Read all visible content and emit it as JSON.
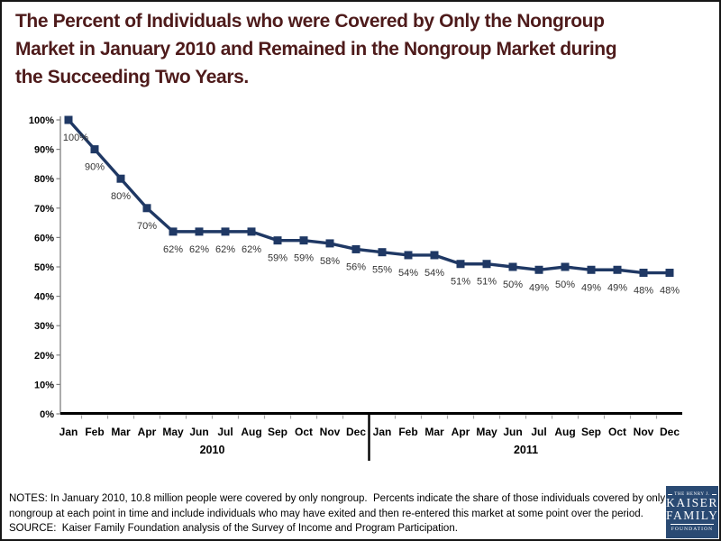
{
  "title": {
    "lines": [
      "The Percent of Individuals who were Covered by Only the Nongroup",
      "Market in January 2010 and Remained in the Nongroup Market during",
      "the Succeeding Two Years."
    ],
    "color": "#4e1b1b"
  },
  "chart_data": {
    "type": "line",
    "title": "The Percent of Individuals who were Covered by Only the Nongroup Market in January 2010 and Remained in the Nongroup Market during the Succeeding Two Years.",
    "month_labels": [
      "Jan",
      "Feb",
      "Mar",
      "Apr",
      "May",
      "Jun",
      "Jul",
      "Aug",
      "Sep",
      "Oct",
      "Nov",
      "Dec",
      "Jan",
      "Feb",
      "Mar",
      "Apr",
      "May",
      "Jun",
      "Jul",
      "Aug",
      "Sep",
      "Oct",
      "Nov",
      "Dec"
    ],
    "year_groups": [
      {
        "label": "2010",
        "start": 0,
        "end": 11
      },
      {
        "label": "2011",
        "start": 12,
        "end": 23
      }
    ],
    "values": [
      100,
      90,
      80,
      70,
      62,
      62,
      62,
      62,
      59,
      59,
      58,
      56,
      55,
      54,
      54,
      51,
      51,
      50,
      49,
      50,
      49,
      49,
      48,
      48
    ],
    "data_labels": [
      "100%",
      "90%",
      "80%",
      "70%",
      "62%",
      "62%",
      "62%",
      "62%",
      "59%",
      "59%",
      "58%",
      "56%",
      "55%",
      "54%",
      "54%",
      "51%",
      "51%",
      "50%",
      "49%",
      "50%",
      "49%",
      "49%",
      "48%",
      "48%"
    ],
    "y_tick_labels": [
      "100%",
      "90%",
      "80%",
      "70%",
      "60%",
      "50%",
      "40%",
      "30%",
      "20%",
      "10%",
      "0%"
    ],
    "ylim": [
      0,
      100
    ],
    "xlabel": "",
    "ylabel": "",
    "grid": false,
    "legend": "none",
    "marker": "square",
    "line_color": "#1f3864",
    "axis_color": "#000000",
    "tick_color": "#a6a6a6",
    "data_label_color": "#333333"
  },
  "notes": {
    "lines": [
      "NOTES: In January 2010, 10.8 million people were covered by only nongroup.  Percents indicate the share of those individuals covered by only",
      "nongroup at each point in time and include individuals who may have exited and then re-entered this market at some point over the period.",
      "SOURCE:  Kaiser Family Foundation analysis of the Survey of Income and Program Participation."
    ]
  },
  "logo": {
    "line1": "THE HENRY J.",
    "line2": "KAISER",
    "line3": "FAMILY",
    "line4": "FOUNDATION",
    "bg_color": "#2a4a73"
  }
}
